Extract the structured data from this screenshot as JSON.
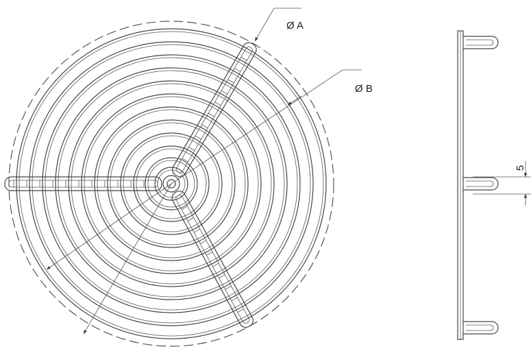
{
  "labels": {
    "dia_a": "Ø A",
    "dia_b": "Ø B",
    "dim": "5"
  }
}
